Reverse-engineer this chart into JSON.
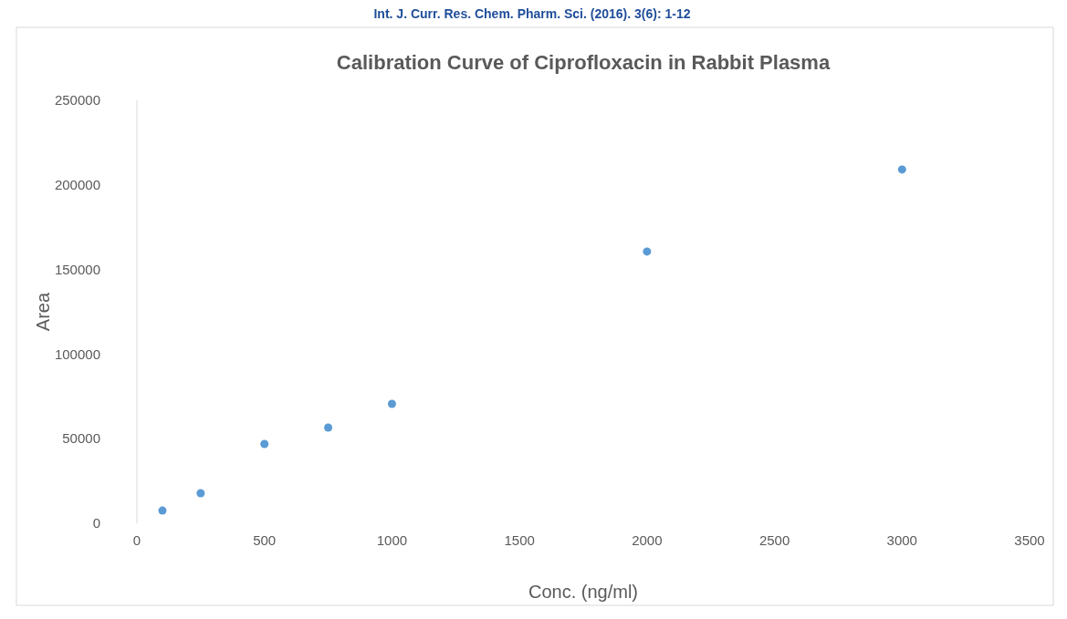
{
  "chart_data": {
    "type": "scatter",
    "title": "Calibration Curve of Ciprofloxacin in Rabbit Plasma",
    "xlabel": "Conc. (ng/ml)",
    "ylabel": "Area",
    "annotations": [
      "Int. J. Curr. Res. Chem. Pharm. Sci. (2016). 3(6): 1-12"
    ],
    "x": [
      100,
      250,
      500,
      750,
      1000,
      2000,
      3000
    ],
    "series": [
      {
        "color": "#5b9bd5",
        "values": [
          7500,
          17800,
          46900,
          56600,
          70600,
          160600,
          209100
        ]
      }
    ],
    "xlim": [
      0,
      3500
    ],
    "xticks": [
      0,
      500,
      1000,
      1500,
      2000,
      2500,
      3000,
      3500
    ],
    "ylim": [
      0,
      250000
    ],
    "yticks": [
      0,
      50000,
      100000,
      150000,
      200000,
      250000
    ],
    "grid": false,
    "marker": "circle"
  }
}
